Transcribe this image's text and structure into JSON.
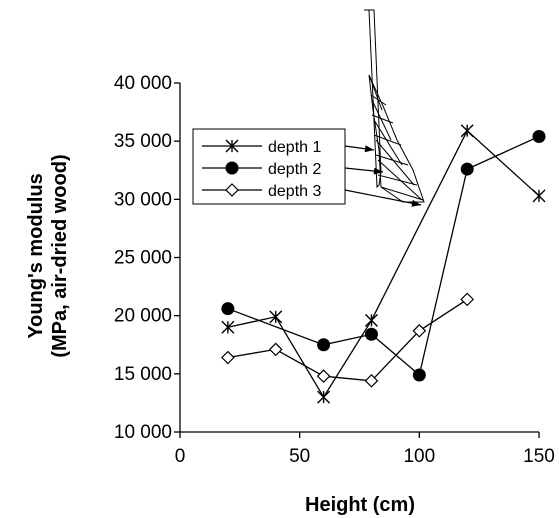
{
  "chart_data": {
    "type": "line",
    "xlabel": "Height (cm)",
    "ylabel_line1": "Young's modulus",
    "ylabel_line2": "(MPa, air-dried wood)",
    "xlim": [
      0,
      150
    ],
    "ylim": [
      10000,
      40000
    ],
    "xticks": [
      0,
      50,
      100,
      150
    ],
    "yticks": [
      10000,
      15000,
      20000,
      25000,
      30000,
      35000,
      40000
    ],
    "xtick_labels": [
      "0",
      "50",
      "100",
      "150"
    ],
    "ytick_labels": [
      "10 000",
      "15 000",
      "20 000",
      "25 000",
      "30 000",
      "35 000",
      "40 000"
    ],
    "grid": false,
    "legend_position": "top-left",
    "series": [
      {
        "name": "depth 1",
        "marker": "asterisk",
        "x": [
          20,
          40,
          60,
          80,
          120,
          150
        ],
        "y": [
          19000,
          19900,
          13000,
          19600,
          35900,
          30300
        ]
      },
      {
        "name": "depth 2",
        "marker": "filled-circle",
        "x": [
          20,
          60,
          80,
          100,
          120,
          150
        ],
        "y": [
          20600,
          17500,
          18400,
          14900,
          32600,
          35400
        ]
      },
      {
        "name": "depth 3",
        "marker": "open-diamond",
        "x": [
          20,
          40,
          60,
          80,
          100,
          120
        ],
        "y": [
          16400,
          17100,
          14800,
          14400,
          18700,
          21400
        ]
      }
    ]
  }
}
